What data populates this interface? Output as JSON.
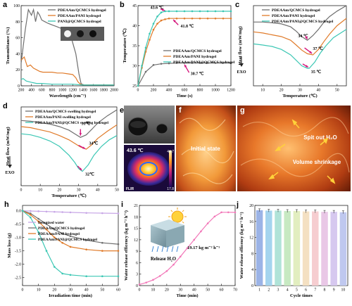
{
  "colors": {
    "gray": "#6f6f6f",
    "orange": "#e07b2a",
    "teal": "#3cc7b4",
    "pink": "#f277b8",
    "lavender": "#c7a6e6",
    "arrow": "#d4147a"
  },
  "chart_data": [
    {
      "panel": "a",
      "type": "line",
      "xlabel": "Wavelength (cm⁻¹)",
      "ylabel": "Transmittance (%)",
      "xlim": [
        200,
        2000
      ],
      "ylim": [
        0,
        100
      ],
      "xticks": [
        "200",
        "400",
        "600",
        "800",
        "1000",
        "1200",
        "1400",
        "1600",
        "1800",
        "2000"
      ],
      "yticks": [
        "0",
        "20",
        "40",
        "60",
        "80",
        "100"
      ],
      "series": [
        {
          "name": "PDEAAm/QCMCS hydrogel",
          "color": "#6f6f6f",
          "x": [
            200,
            280,
            340,
            400,
            440,
            480,
            520,
            560,
            600,
            660,
            720,
            800,
            880,
            960,
            1040,
            1100,
            1180,
            1260,
            1320,
            1360,
            1400,
            1600,
            2000
          ],
          "y": [
            28,
            70,
            95,
            88,
            95,
            80,
            92,
            88,
            82,
            80,
            78,
            76,
            74,
            72,
            70,
            66,
            58,
            40,
            15,
            3,
            1,
            1,
            1
          ]
        },
        {
          "name": "PDEAAm/PANI hydrogel",
          "color": "#e07b2a",
          "x": [
            200,
            260,
            320,
            380,
            440,
            500,
            560,
            620,
            700,
            800,
            900,
            1000,
            1100,
            1200,
            1260,
            1300,
            1350,
            1400,
            1600,
            2000
          ],
          "y": [
            32,
            36,
            24,
            26,
            22,
            20,
            18,
            17,
            17,
            17,
            16,
            16,
            15,
            14,
            10,
            5,
            2,
            1,
            1,
            1
          ]
        },
        {
          "name": "PANI@QCMCS hydrogel",
          "color": "#3cc7b4",
          "x": [
            200,
            240,
            300,
            360,
            420,
            500,
            600,
            800,
            1000,
            1200,
            1400,
            1600,
            2000
          ],
          "y": [
            8,
            9,
            6,
            5,
            4,
            3,
            3,
            2,
            2,
            2,
            1,
            1,
            1
          ]
        }
      ]
    },
    {
      "panel": "b",
      "type": "line",
      "xlabel": "Time (s)",
      "ylabel": "Temperature (℃)",
      "xlim": [
        0,
        1200
      ],
      "ylim": [
        25,
        45
      ],
      "xticks": [
        "0",
        "200",
        "400",
        "600",
        "800",
        "1000",
        "1200"
      ],
      "yticks": [
        "25",
        "30",
        "35",
        "40",
        "45"
      ],
      "annotations": [
        "43.6 ℃",
        "41.8 ℃",
        "30.7 ℃"
      ],
      "series": [
        {
          "name": "PDEAAm/QCMCS hydrogel",
          "color": "#6f6f6f",
          "x": [
            0,
            100,
            200,
            300,
            400,
            500,
            600,
            700,
            800,
            900,
            1000,
            1100,
            1200
          ],
          "y": [
            25,
            28.5,
            30.2,
            30.5,
            30.6,
            30.7,
            30.7,
            30.7,
            30.7,
            30.7,
            30.7,
            30.7,
            30.7
          ]
        },
        {
          "name": "PDEAAm/PANI hydrogel",
          "color": "#e07b2a",
          "x": [
            0,
            50,
            100,
            150,
            200,
            250,
            300,
            350,
            400,
            500,
            600,
            700,
            800,
            900,
            1000,
            1100,
            1200
          ],
          "y": [
            25,
            29.5,
            33.5,
            36.5,
            39,
            40.5,
            41.3,
            41.6,
            41.8,
            41.8,
            41.8,
            41.8,
            41.8,
            41.8,
            41.8,
            41.8,
            41.8
          ]
        },
        {
          "name": "PDEAAm/PANI@QCMCS hydrogel",
          "color": "#3cc7b4",
          "x": [
            0,
            50,
            100,
            150,
            200,
            250,
            300,
            350,
            400,
            500,
            600,
            700,
            800,
            900,
            1000,
            1100,
            1200
          ],
          "y": [
            25,
            30,
            34.5,
            38,
            40.5,
            42.3,
            43.3,
            43.6,
            43.6,
            43.6,
            43.6,
            43.6,
            43.6,
            43.6,
            43.6,
            43.6,
            43.6
          ]
        }
      ]
    },
    {
      "panel": "c",
      "type": "line",
      "xlabel": "Temperature (℃)",
      "ylabel": "Heat flow (mW/mg)",
      "xlim": [
        5,
        55
      ],
      "ylim": [
        -1.2,
        1
      ],
      "xticks": [
        "10",
        "20",
        "30",
        "40",
        "50"
      ],
      "exo_label": "EXO",
      "annotations": [
        "34 ℃",
        "37 ℃",
        "35 ℃"
      ],
      "series": [
        {
          "name": "PDEAAm/QCMCS hydrogel",
          "color": "#6f6f6f",
          "x": [
            5,
            10,
            15,
            20,
            25,
            28,
            31,
            34,
            37,
            40,
            43,
            46,
            50,
            55
          ],
          "y": [
            0.55,
            0.55,
            0.53,
            0.5,
            0.42,
            0.3,
            0.15,
            0.05,
            0.18,
            0.35,
            0.55,
            0.7,
            0.85,
            1.0
          ]
        },
        {
          "name": "PDEAAm/PANI hydrogel",
          "color": "#e07b2a",
          "x": [
            5,
            10,
            15,
            20,
            25,
            28,
            31,
            34,
            37,
            40,
            43,
            46,
            50,
            55
          ],
          "y": [
            0.28,
            0.25,
            0.2,
            0.15,
            0.05,
            -0.08,
            -0.22,
            -0.32,
            -0.35,
            -0.2,
            0.02,
            0.22,
            0.45,
            0.65
          ]
        },
        {
          "name": "PDEAAm/PANI@QCMCS hydrogel",
          "color": "#3cc7b4",
          "x": [
            5,
            10,
            15,
            20,
            25,
            28,
            31,
            34,
            35,
            38,
            41,
            44,
            48,
            55
          ],
          "y": [
            -0.05,
            -0.08,
            -0.12,
            -0.2,
            -0.35,
            -0.5,
            -0.65,
            -0.72,
            -0.72,
            -0.55,
            -0.3,
            -0.1,
            0.12,
            0.35
          ]
        }
      ]
    },
    {
      "panel": "d",
      "type": "line",
      "xlabel": "Temperature (℃)",
      "ylabel": "Heat flow (mW/mg)",
      "xlim": [
        0,
        50
      ],
      "ylim": [
        -1.2,
        1
      ],
      "xticks": [
        "0",
        "10",
        "20",
        "30",
        "40",
        "50"
      ],
      "exo_label": "EXO",
      "annotations": [
        "31℃",
        "34℃",
        "32℃"
      ],
      "series": [
        {
          "name": "PDEAAm/QCMCS swelling hydrogel",
          "color": "#6f6f6f",
          "x": [
            0,
            5,
            10,
            15,
            20,
            25,
            28,
            31,
            34,
            37,
            40,
            45,
            50
          ],
          "y": [
            0.62,
            0.6,
            0.56,
            0.52,
            0.45,
            0.35,
            0.25,
            0.15,
            0.22,
            0.38,
            0.55,
            0.75,
            0.92
          ]
        },
        {
          "name": "PDEAAm/PANI swelling hydrogel",
          "color": "#e07b2a",
          "x": [
            0,
            5,
            10,
            15,
            20,
            25,
            28,
            31,
            34,
            37,
            40,
            45,
            50
          ],
          "y": [
            0.45,
            0.42,
            0.36,
            0.3,
            0.2,
            0.08,
            -0.02,
            -0.12,
            -0.18,
            -0.05,
            0.12,
            0.32,
            0.5
          ]
        },
        {
          "name": "PDEAAm/PANI@QCMCS swelling hydrogel",
          "color": "#3cc7b4",
          "x": [
            0,
            5,
            10,
            15,
            20,
            25,
            28,
            30,
            32,
            35,
            38,
            42,
            46,
            50
          ],
          "y": [
            0.25,
            0.22,
            0.15,
            0.05,
            -0.1,
            -0.35,
            -0.55,
            -0.72,
            -0.8,
            -0.62,
            -0.35,
            -0.1,
            0.08,
            0.2
          ]
        }
      ]
    },
    {
      "panel": "h",
      "type": "line",
      "xlabel": "Irradiation time (min)",
      "ylabel": "Mass loss (g)",
      "xlim": [
        0,
        60
      ],
      "ylim": [
        -2.8,
        0.2
      ],
      "xticks": [
        "0",
        "10",
        "20",
        "30",
        "40",
        "50",
        "60"
      ],
      "yticks": [
        "0.0",
        "-0.5",
        "-1.0",
        "-1.5",
        "-2.0",
        "-2.5"
      ],
      "series": [
        {
          "name": "Deionized water",
          "color": "#c7a6e6",
          "x": [
            0,
            5,
            10,
            15,
            20,
            25,
            30,
            40,
            50,
            60
          ],
          "y": [
            0,
            -0.01,
            -0.02,
            -0.03,
            -0.04,
            -0.05,
            -0.06,
            -0.08,
            -0.09,
            -0.1
          ]
        },
        {
          "name": "PDEAAm/QCMCS hydrogel",
          "color": "#6f6f6f",
          "x": [
            0,
            5,
            10,
            15,
            20,
            25,
            30,
            40,
            50,
            60
          ],
          "y": [
            0,
            -0.1,
            -0.3,
            -0.5,
            -0.7,
            -0.85,
            -0.95,
            -1.1,
            -1.2,
            -1.25
          ]
        },
        {
          "name": "PDEAAm/PANI hydrogel",
          "color": "#e07b2a",
          "x": [
            0,
            5,
            10,
            15,
            20,
            25,
            30,
            40,
            50,
            60
          ],
          "y": [
            0,
            -0.15,
            -0.4,
            -0.7,
            -1.0,
            -1.2,
            -1.35,
            -1.45,
            -1.5,
            -1.5
          ]
        },
        {
          "name": "PDEAAm/PANI@QCMCS hydrogel",
          "color": "#3cc7b4",
          "x": [
            0,
            5,
            10,
            15,
            20,
            25,
            30,
            40,
            50,
            60
          ],
          "y": [
            0,
            -0.25,
            -0.8,
            -1.5,
            -2.1,
            -2.35,
            -2.4,
            -2.45,
            -2.45,
            -2.45
          ]
        }
      ]
    },
    {
      "panel": "i",
      "type": "line",
      "xlabel": "Time (min)",
      "ylabel": "Water release efficency (kg m⁻² h⁻¹)",
      "xlim": [
        0,
        70
      ],
      "ylim": [
        0,
        21
      ],
      "xticks": [
        "0",
        "10",
        "20",
        "30",
        "40",
        "50",
        "60",
        "70"
      ],
      "yticks": [
        "0",
        "3",
        "6",
        "9",
        "12",
        "15",
        "18",
        "21"
      ],
      "annotations": [
        "19.17 kg m⁻² h⁻¹",
        "Release H₂O"
      ],
      "series": [
        {
          "name": "",
          "color": "#f277b8",
          "x": [
            0,
            5,
            10,
            15,
            20,
            25,
            30,
            35,
            40,
            45,
            50,
            55,
            60,
            65,
            70
          ],
          "y": [
            0.3,
            0.8,
            1.5,
            2.5,
            3.8,
            5.5,
            7.6,
            9.8,
            12.0,
            14.2,
            16.3,
            18.1,
            19.2,
            19.2,
            19.17
          ]
        }
      ]
    },
    {
      "panel": "j",
      "type": "bar",
      "xlabel": "Cycle times",
      "ylabel": "Water release efficency (kg m⁻² h⁻¹)",
      "ylim": [
        0,
        20
      ],
      "yticks": [
        "0",
        "4",
        "8",
        "12",
        "16",
        "20"
      ],
      "categories": [
        "1",
        "2",
        "3",
        "4",
        "5",
        "6",
        "7",
        "8",
        "9",
        "10"
      ],
      "values": [
        18.8,
        18.7,
        18.7,
        18.6,
        18.6,
        18.5,
        18.5,
        18.4,
        18.4,
        18.3
      ],
      "colors": [
        "#9bb3e6",
        "#a4d4ee",
        "#b0e3d8",
        "#c7e9c2",
        "#e2eec0",
        "#f4e0c2",
        "#f6cdd0",
        "#e9c7e6",
        "#d6c8ef",
        "#bfc8ef"
      ]
    }
  ],
  "images": {
    "e_temp": "43.6 ℃",
    "e_max": "44.7",
    "e_min": "17.8",
    "e_brand": "FLIR",
    "f_label": "Initial state",
    "g_label1": "Spit out H₂O",
    "g_label2": "Volume shrinkage"
  }
}
